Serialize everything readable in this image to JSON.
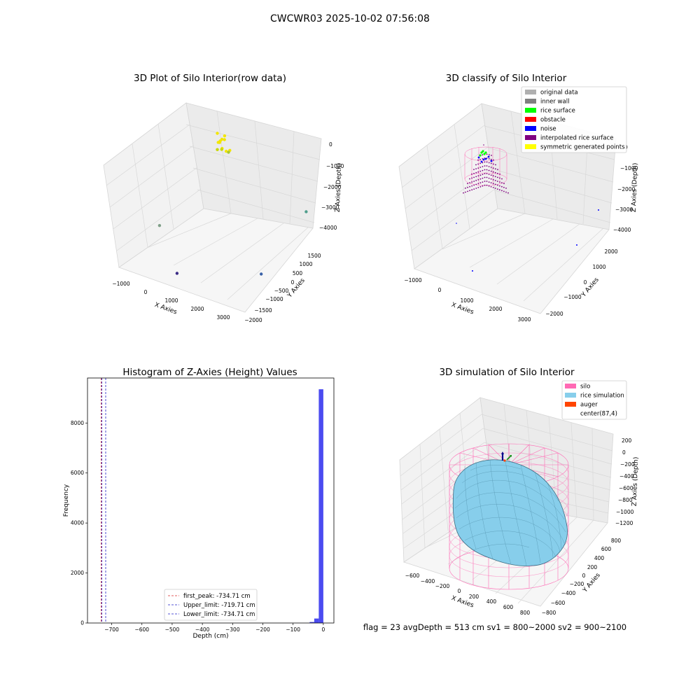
{
  "figure": {
    "suptitle": "CWCWR03 2025-10-02 07:56:08",
    "stats_line": "flag = 23  avgDepth = 513 cm  sv1 = 800~2000  sv2 = 900~2100"
  },
  "chart_data": [
    {
      "type": "scatter",
      "subtype": "3d",
      "title": "3D Plot of Silo Interior(row data)",
      "xlabel": "X Axies",
      "ylabel": "Y Axies",
      "zlabel": "Z Axies (Depth)",
      "xticks": [
        "−1000",
        "0",
        "1000",
        "2000",
        "3000"
      ],
      "yticks": [
        "−2000",
        "−1500",
        "−1000",
        "−500",
        "0",
        "500",
        "1000",
        "1500"
      ],
      "zticks": [
        "0",
        "−1000",
        "−2000",
        "−3000",
        "−4000"
      ],
      "xlim": [
        -1500,
        3300
      ],
      "ylim": [
        -2000,
        1800
      ],
      "zlim": [
        -4500,
        200
      ],
      "points": [
        {
          "x": 120,
          "y": 1250,
          "z": -300,
          "color": "#f2e600"
        },
        {
          "x": 150,
          "y": 1300,
          "z": -250,
          "color": "#f2e600"
        },
        {
          "x": 80,
          "y": 1200,
          "z": -350,
          "color": "#f2e600"
        },
        {
          "x": 200,
          "y": 1350,
          "z": -280,
          "color": "#f2e600"
        },
        {
          "x": 60,
          "y": 1280,
          "z": -420,
          "color": "#f2e600"
        },
        {
          "x": 250,
          "y": 1150,
          "z": -520,
          "color": "#f2e600"
        },
        {
          "x": 180,
          "y": 1400,
          "z": -150,
          "color": "#f2e600"
        },
        {
          "x": 100,
          "y": 1100,
          "z": -600,
          "color": "#c8d800"
        },
        {
          "x": 300,
          "y": 1250,
          "z": -700,
          "color": "#f2e600"
        },
        {
          "x": 30,
          "y": 1350,
          "z": -800,
          "color": "#c8d800"
        },
        {
          "x": 400,
          "y": 1300,
          "z": -650,
          "color": "#f2e600"
        },
        {
          "x": 220,
          "y": 1420,
          "z": -900,
          "color": "#a8c830"
        },
        {
          "x": 120,
          "y": 1180,
          "z": 100,
          "color": "#f2e600"
        },
        {
          "x": -1300,
          "y": -300,
          "z": -3700,
          "color": "#7f9f88"
        },
        {
          "x": 700,
          "y": -1900,
          "z": -3900,
          "color": "#3b2c86"
        },
        {
          "x": 2500,
          "y": -300,
          "z": -4300,
          "color": "#3a62a8"
        },
        {
          "x": 3200,
          "y": 1200,
          "z": -2200,
          "color": "#4f9e8c"
        }
      ]
    },
    {
      "type": "scatter",
      "subtype": "3d",
      "title": "3D classify of Silo Interior",
      "xlabel": "X Axies",
      "ylabel": "Y Axies",
      "zlabel": "Z Axies (Depth)",
      "xticks": [
        "−1000",
        "0",
        "1000",
        "2000",
        "3000"
      ],
      "yticks": [
        "−2000",
        "−1000",
        "0",
        "1000",
        "2000"
      ],
      "zticks": [
        "0",
        "−1000",
        "−2000",
        "−3000",
        "−4000"
      ],
      "legend": [
        {
          "label": "original data",
          "color": "#b0b0b0"
        },
        {
          "label": "inner wall",
          "color": "#808080"
        },
        {
          "label": "rice surface",
          "color": "#00ff00"
        },
        {
          "label": "obstacle",
          "color": "#ff0000"
        },
        {
          "label": "noise",
          "color": "#0000ff"
        },
        {
          "label": "interpolated rice surface",
          "color": "#800080"
        },
        {
          "label": "symmetric generated points",
          "color": "#ffff00"
        }
      ],
      "legend_loc": "upper right"
    },
    {
      "type": "histogram",
      "title": "Histogram of Z-Axies (Height) Values",
      "xlabel": "Depth (cm)",
      "ylabel": "Frequency",
      "xlim": [
        -780,
        35
      ],
      "ylim": [
        0,
        9800
      ],
      "xticks": [
        "−700",
        "−600",
        "−500",
        "−400",
        "−300",
        "−200",
        "−100",
        "0"
      ],
      "yticks": [
        "0",
        "2000",
        "4000",
        "6000",
        "8000"
      ],
      "bins": [
        {
          "x0": -45,
          "x1": -30,
          "count": 40
        },
        {
          "x0": -30,
          "x1": -15,
          "count": 180
        },
        {
          "x0": -15,
          "x1": 0,
          "count": 9350
        }
      ],
      "bar_color": "#4b4bf0",
      "vlines": [
        {
          "label": "first_peak: -734.71 cm",
          "x": -734.71,
          "color": "#d62728"
        },
        {
          "label": "Upper_limit: -719.71 cm",
          "x": -719.71,
          "color": "#1f1fc8"
        },
        {
          "label": "Lower_limit: -734.71 cm",
          "x": -734.71,
          "color": "#1f1fc8"
        }
      ],
      "legend_loc": "lower center"
    },
    {
      "type": "surface",
      "subtype": "3d",
      "title": "3D simulation of Silo Interior",
      "xlabel": "X Axies",
      "ylabel": "Y Axies",
      "zlabel": "Z Axies (Depth)",
      "xticks": [
        "−600",
        "−400",
        "−200",
        "0",
        "200",
        "400",
        "600",
        "800"
      ],
      "yticks": [
        "−800",
        "−600",
        "−400",
        "−200",
        "0",
        "200",
        "400",
        "600",
        "800"
      ],
      "zticks": [
        "200",
        "0",
        "−200",
        "−400",
        "−600",
        "−800",
        "−1000",
        "−1200"
      ],
      "legend": [
        {
          "label": "silo",
          "color": "#ff69b4"
        },
        {
          "label": "rice simulation",
          "color": "#87ceeb"
        },
        {
          "label": "auger",
          "color": "#ff4500"
        },
        {
          "label": "center(87,4)",
          "color": ""
        }
      ],
      "legend_loc": "upper right"
    }
  ]
}
